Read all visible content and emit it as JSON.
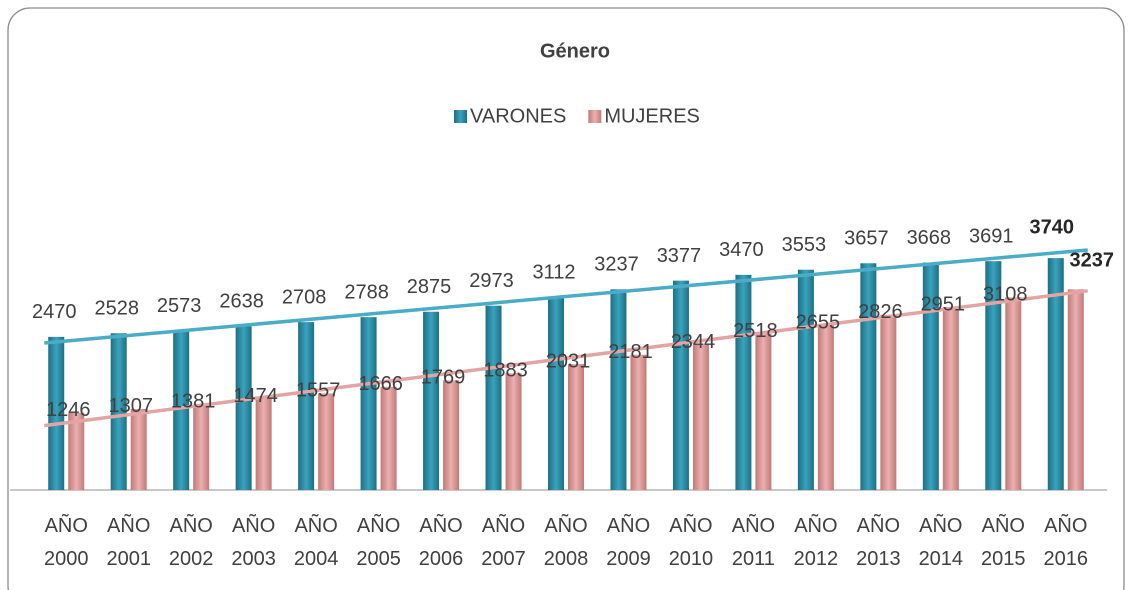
{
  "chart_data": {
    "type": "bar",
    "title": "Género",
    "categories": [
      "AÑO 2000",
      "AÑO 2001",
      "AÑO 2002",
      "AÑO 2003",
      "AÑO 2004",
      "AÑO 2005",
      "AÑO 2006",
      "AÑO 2007",
      "AÑO 2008",
      "AÑO 2009",
      "AÑO 2010",
      "AÑO 2011",
      "AÑO 2012",
      "AÑO 2013",
      "AÑO 2014",
      "AÑO 2015",
      "AÑO 2016"
    ],
    "series": [
      {
        "name": "VARONES",
        "color": "#2b8ea6",
        "trend_color": "#4bacc6",
        "values": [
          2470,
          2528,
          2573,
          2638,
          2708,
          2788,
          2875,
          2973,
          3112,
          3237,
          3377,
          3470,
          3553,
          3657,
          3668,
          3691,
          3740
        ]
      },
      {
        "name": "MUJERES",
        "color": "#d89593",
        "trend_color": "#e2a5a4",
        "values": [
          1246,
          1307,
          1381,
          1474,
          1557,
          1666,
          1769,
          1883,
          2031,
          2181,
          2344,
          2518,
          2655,
          2826,
          2951,
          3108,
          3237
        ]
      }
    ],
    "ylim": [
      0,
      4000
    ],
    "trendline": true,
    "legend": "top"
  }
}
